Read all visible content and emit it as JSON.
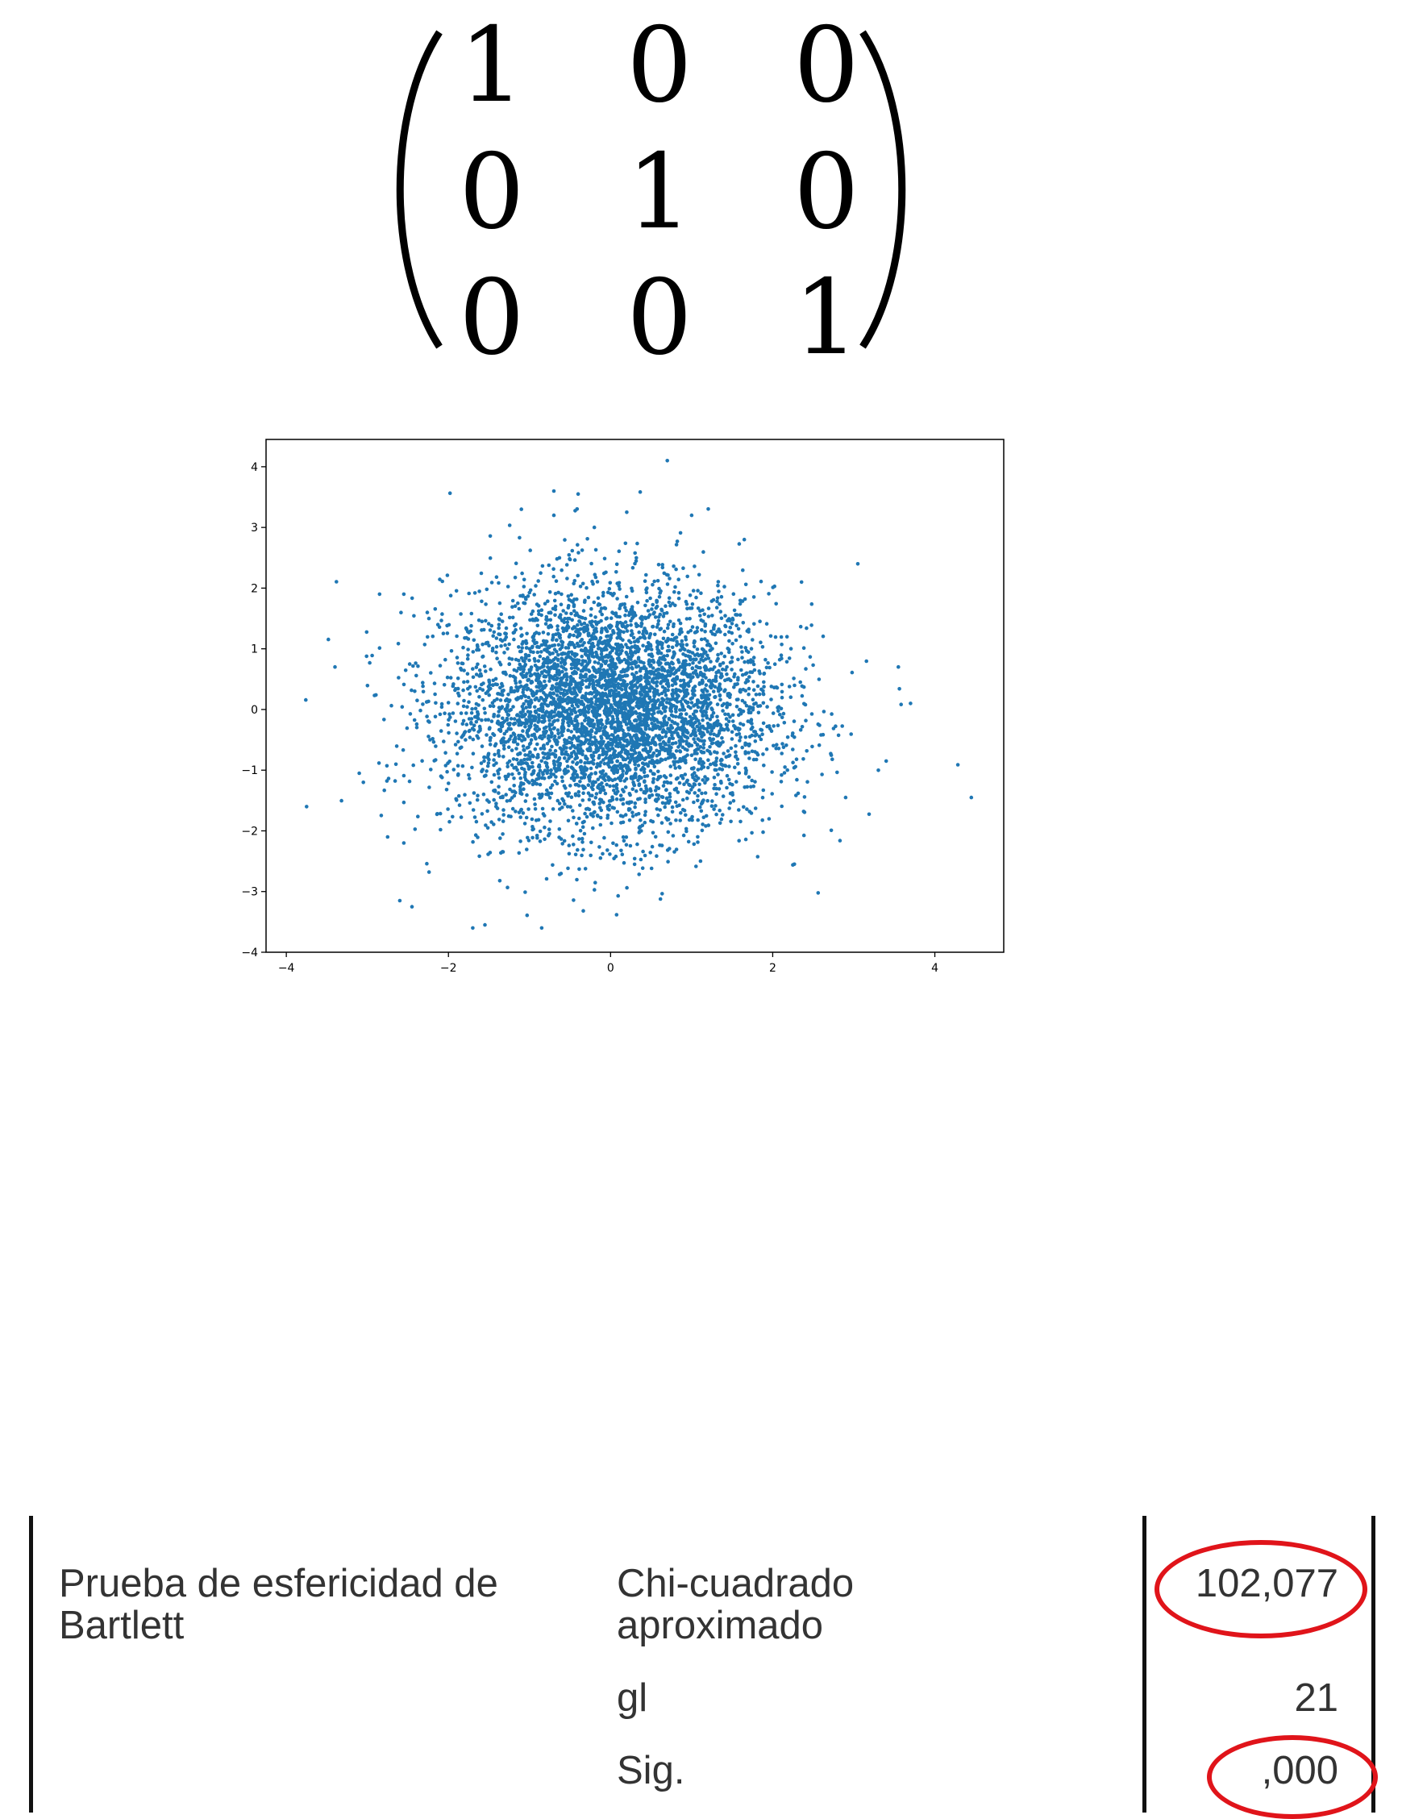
{
  "matrix": {
    "rows": [
      [
        "1",
        "0",
        "0"
      ],
      [
        "0",
        "1",
        "0"
      ],
      [
        "0",
        "0",
        "1"
      ]
    ]
  },
  "chart_data": {
    "type": "scatter",
    "title": "",
    "xlabel": "",
    "ylabel": "",
    "xlim": [
      -4.25,
      4.85
    ],
    "ylim": [
      -4.0,
      4.45
    ],
    "xticks": [
      -4,
      -2,
      0,
      2,
      4
    ],
    "yticks": [
      -4,
      -3,
      -2,
      -1,
      0,
      1,
      2,
      3,
      4
    ],
    "grid": false,
    "marker_color": "#1f77b4",
    "distribution": "bivariate standard normal, identity covariance",
    "n_points": 5000,
    "points": [
      [
        0.7,
        4.1
      ],
      [
        -0.7,
        3.6
      ],
      [
        -0.4,
        3.55
      ],
      [
        -1.1,
        3.3
      ],
      [
        0.2,
        3.25
      ],
      [
        1,
        3.2
      ],
      [
        -0.7,
        3.2
      ],
      [
        -0.2,
        3.0
      ],
      [
        1.65,
        2.8
      ],
      [
        3.05,
        2.4
      ],
      [
        -3.75,
        -1.6
      ],
      [
        4.45,
        -1.45
      ],
      [
        3.7,
        0.1
      ],
      [
        3.55,
        0.7
      ],
      [
        -3.4,
        0.7
      ],
      [
        -2.85,
        1.9
      ],
      [
        -2.55,
        1.9
      ],
      [
        -2.45,
        -3.25
      ],
      [
        -2.6,
        -3.15
      ],
      [
        -1.7,
        -3.6
      ],
      [
        -1.55,
        -3.55
      ],
      [
        -0.85,
        -3.6
      ],
      [
        2.9,
        -1.45
      ],
      [
        3.4,
        -0.85
      ],
      [
        -3.1,
        -1.05
      ],
      [
        -3.05,
        -1.2
      ],
      [
        -2.75,
        -2.1
      ],
      [
        -2.55,
        -2.2
      ]
    ]
  },
  "bartlett": {
    "test_label": "Prueba de esfericidad de\nBartlett",
    "rows": [
      {
        "stat": "Chi-cuadrado\naproximado",
        "value": "102,077",
        "highlight": true
      },
      {
        "stat": "gl",
        "value": "21",
        "highlight": false
      },
      {
        "stat": "Sig.",
        "value": ",000",
        "highlight": true
      }
    ],
    "highlight_color": "#e0141a"
  }
}
